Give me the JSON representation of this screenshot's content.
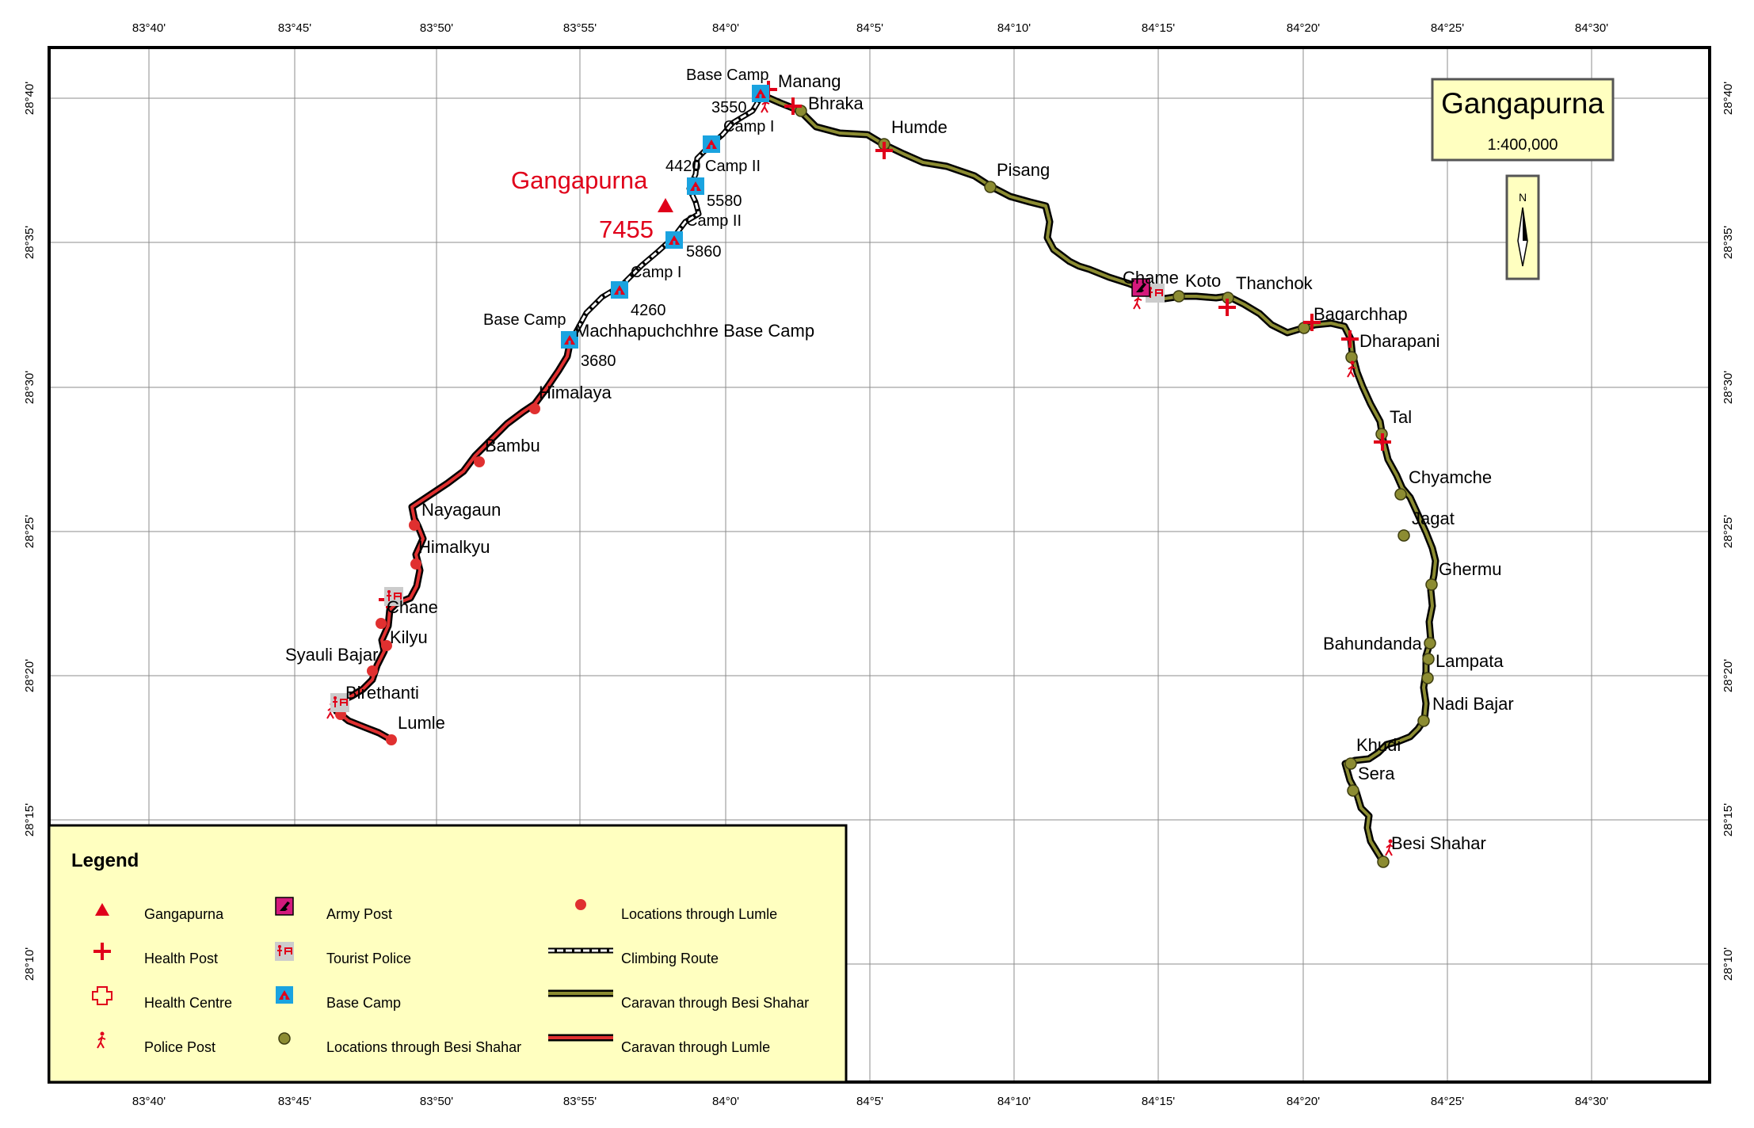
{
  "map_title": "Gangapurna",
  "map_scale": "1:400,000",
  "north_arrow_label": "N",
  "lon_ticks": [
    "83°40'",
    "83°45'",
    "83°50'",
    "83°55'",
    "84°0'",
    "84°5'",
    "84°10'",
    "84°15'",
    "84°20'",
    "84°25'",
    "84°30'"
  ],
  "lat_ticks": [
    "28°40'",
    "28°35'",
    "28°30'",
    "28°25'",
    "28°20'",
    "28°15'",
    "28°10'"
  ],
  "peak": {
    "name": "Gangapurna",
    "elevation": "7455"
  },
  "besi_shahar_locations": [
    "Bhraka",
    "Humde",
    "Pisang",
    "Chame",
    "Koto",
    "Thanchok",
    "Bagarchhap",
    "Dharapani",
    "Tal",
    "Chyamche",
    "Jagat",
    "Ghermu",
    "Bahundanda",
    "Lampata",
    "Nadi Bajar",
    "Khudi",
    "Sera",
    "Besi Shahar"
  ],
  "lumle_locations": [
    "Himalaya",
    "Bambu",
    "Nayagaun",
    "Himalkyu",
    "Chane",
    "Kilyu",
    "Syauli Bajar",
    "Birethanti",
    "Lumle"
  ],
  "base_camps_north": {
    "manang": "Manang",
    "base_camp": "Base Camp",
    "camp_1": "Camp I",
    "camp_2": "Camp II",
    "alt_3550": "3550",
    "alt_4420": "4420",
    "alt_5580": "5580"
  },
  "base_camps_south": {
    "camp_2": "Camp II",
    "camp_1": "Camp I",
    "base_camp": "Base Camp",
    "mbc": "Machhapuchchhre Base Camp",
    "alt_5860": "5860",
    "alt_4260": "4260",
    "alt_3680": "3680"
  },
  "legend": {
    "title": "Legend",
    "items": [
      {
        "label": "Gangapurna",
        "icon": "triangle-icon"
      },
      {
        "label": "Health Post",
        "icon": "red-cross-icon"
      },
      {
        "label": "Health Centre",
        "icon": "outline-cross-icon"
      },
      {
        "label": "Police Post",
        "icon": "police-icon"
      },
      {
        "label": "Army Post",
        "icon": "army-icon"
      },
      {
        "label": "Tourist Police",
        "icon": "tourist-police-icon"
      },
      {
        "label": "Base Camp",
        "icon": "tent-icon"
      },
      {
        "label": "Locations through Besi Shahar",
        "icon": "olive-dot-icon"
      },
      {
        "label": "Locations through Lumle",
        "icon": "red-dot-icon"
      },
      {
        "label": "Climbing Route",
        "icon": "climbing-route-icon"
      },
      {
        "label": "Caravan through Besi Shahar",
        "icon": "olive-route-icon"
      },
      {
        "label": "Caravan through Lumle",
        "icon": "red-route-icon"
      }
    ]
  },
  "colors": {
    "accent_red": "#e0001a",
    "olive_route": "#5a5a1e",
    "olive_dot": "#8c8c32",
    "lumle_red": "#e03030",
    "legend_bg": "#ffffc0",
    "base_camp_blue": "#1aa3e0",
    "army_magenta": "#d4197c"
  }
}
